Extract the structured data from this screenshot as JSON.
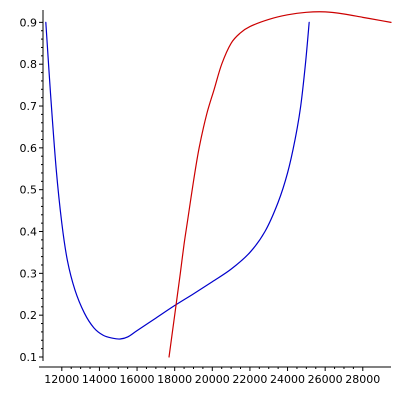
{
  "chart_data": {
    "type": "line",
    "title": "",
    "xlabel": "",
    "ylabel": "",
    "xlim": [
      11000,
      29500
    ],
    "ylim": [
      0.1,
      0.92
    ],
    "x_ticks": [
      12000,
      14000,
      16000,
      18000,
      20000,
      22000,
      24000,
      26000,
      28000
    ],
    "y_ticks": [
      0.1,
      0.2,
      0.3,
      0.4,
      0.5,
      0.6,
      0.7,
      0.8,
      0.9
    ],
    "x_tick_labels": [
      "12000",
      "14000",
      "16000",
      "18000",
      "20000",
      "22000",
      "24000",
      "26000",
      "28000"
    ],
    "y_tick_labels": [
      "0.1",
      "0.2",
      "0.3",
      "0.4",
      "0.5",
      "0.6",
      "0.7",
      "0.8",
      "0.9"
    ],
    "grid": false,
    "legend": "none",
    "series": [
      {
        "color": "#0000cc",
        "points": [
          [
            11150,
            0.9
          ],
          [
            11400,
            0.73
          ],
          [
            11700,
            0.55
          ],
          [
            12000,
            0.42
          ],
          [
            12300,
            0.33
          ],
          [
            12700,
            0.26
          ],
          [
            13200,
            0.205
          ],
          [
            13700,
            0.17
          ],
          [
            14200,
            0.152
          ],
          [
            14700,
            0.145
          ],
          [
            15100,
            0.143
          ],
          [
            15500,
            0.148
          ],
          [
            16000,
            0.163
          ],
          [
            17000,
            0.193
          ],
          [
            18000,
            0.223
          ],
          [
            19000,
            0.251
          ],
          [
            20000,
            0.28
          ],
          [
            21000,
            0.31
          ],
          [
            22000,
            0.35
          ],
          [
            22800,
            0.4
          ],
          [
            23500,
            0.47
          ],
          [
            24000,
            0.54
          ],
          [
            24400,
            0.62
          ],
          [
            24700,
            0.7
          ],
          [
            24950,
            0.8
          ],
          [
            25150,
            0.9
          ]
        ]
      },
      {
        "color": "#cc0000",
        "points": [
          [
            17700,
            0.1
          ],
          [
            17850,
            0.15
          ],
          [
            18000,
            0.2
          ],
          [
            18150,
            0.25
          ],
          [
            18300,
            0.3
          ],
          [
            18500,
            0.37
          ],
          [
            18700,
            0.43
          ],
          [
            19000,
            0.52
          ],
          [
            19300,
            0.6
          ],
          [
            19700,
            0.68
          ],
          [
            20100,
            0.74
          ],
          [
            20500,
            0.8
          ],
          [
            21000,
            0.85
          ],
          [
            21500,
            0.875
          ],
          [
            22000,
            0.89
          ],
          [
            23000,
            0.907
          ],
          [
            24000,
            0.918
          ],
          [
            25000,
            0.924
          ],
          [
            26000,
            0.925
          ],
          [
            27000,
            0.92
          ],
          [
            28000,
            0.912
          ],
          [
            29000,
            0.904
          ],
          [
            29500,
            0.9
          ]
        ]
      }
    ]
  }
}
